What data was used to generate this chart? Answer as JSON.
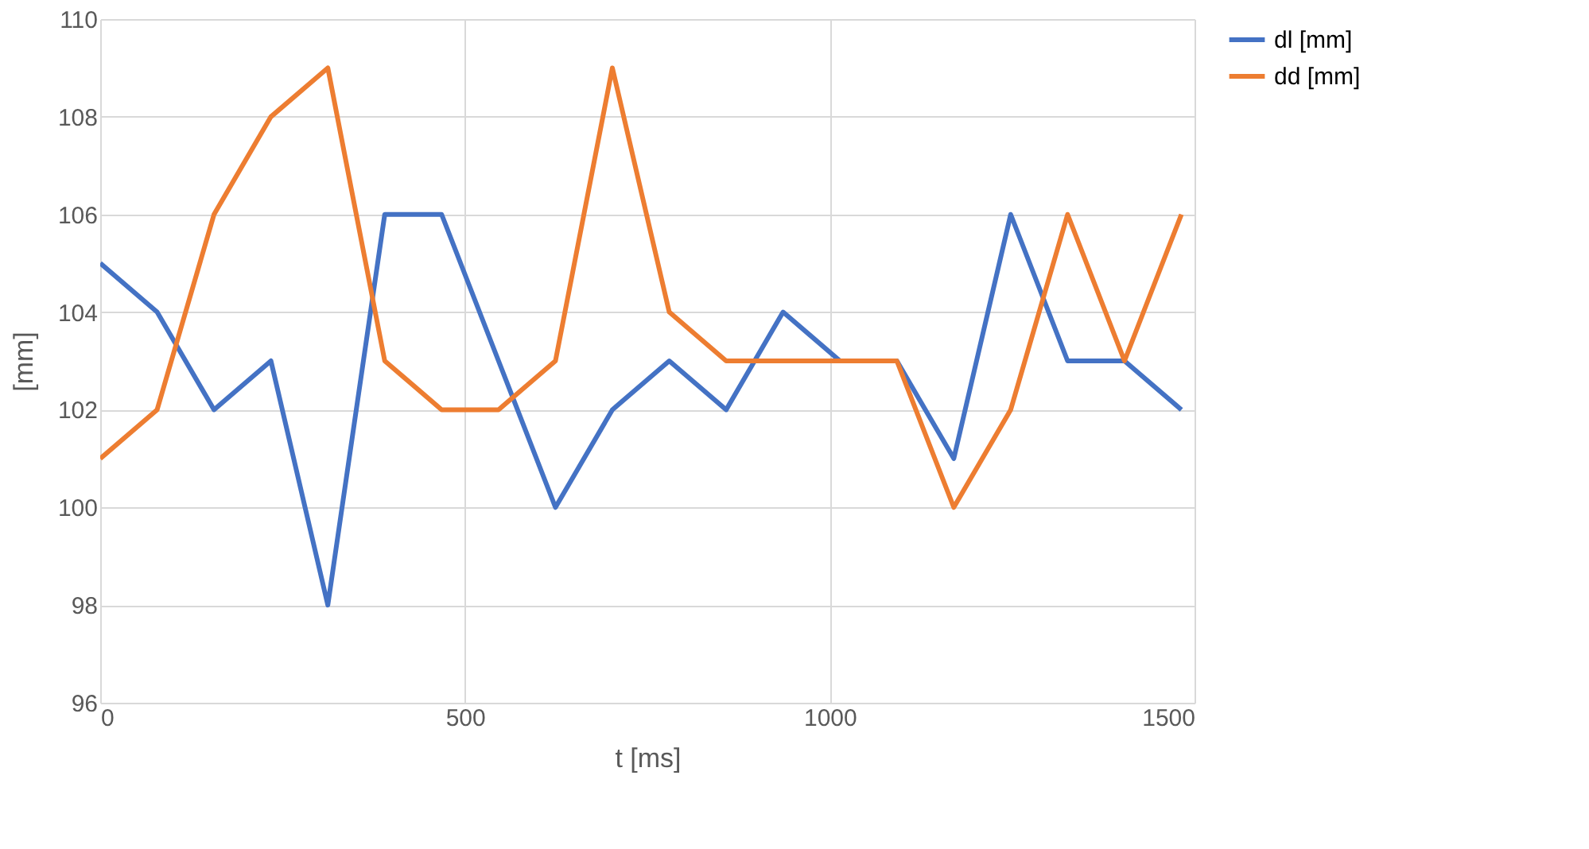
{
  "chart_data": {
    "type": "line",
    "xlabel": "t [ms]",
    "ylabel": "[mm]",
    "x": [
      0,
      78,
      156,
      234,
      312,
      390,
      468,
      546,
      624,
      702,
      780,
      858,
      936,
      1014,
      1092,
      1170,
      1248,
      1326,
      1404,
      1482
    ],
    "series": [
      {
        "name": "dl [mm]",
        "color": "#4472c4",
        "values": [
          105,
          104,
          102,
          103,
          98,
          106,
          106,
          103,
          100,
          102,
          103,
          102,
          104,
          103,
          103,
          101,
          106,
          103,
          103,
          102
        ]
      },
      {
        "name": "dd [mm]",
        "color": "#ed7d31",
        "values": [
          101,
          102,
          106,
          108,
          109,
          103,
          102,
          102,
          103,
          109,
          104,
          103,
          103,
          103,
          103,
          100,
          102,
          106,
          103,
          106
        ]
      }
    ],
    "xlim": [
      0,
      1500
    ],
    "xticks": [
      0,
      500,
      1000,
      1500
    ],
    "ylim": [
      96,
      110
    ],
    "yticks": [
      96,
      98,
      100,
      102,
      104,
      106,
      108,
      110
    ],
    "grid": true,
    "legend": "right",
    "marker": "none",
    "line_style": "solid"
  }
}
